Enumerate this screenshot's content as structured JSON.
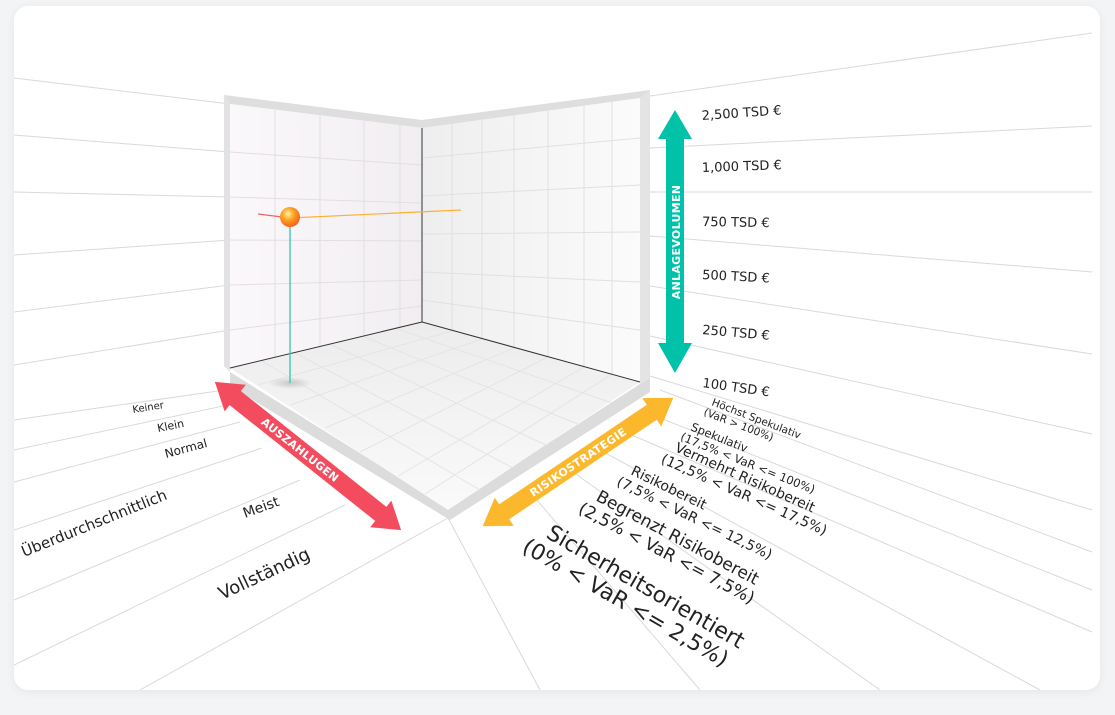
{
  "volume_axis": {
    "title": "ANLAGEVOLUMEN",
    "color": "#00c2a8",
    "levels": [
      "2,500 TSD €",
      "1,000 TSD €",
      "750 TSD €",
      "500 TSD €",
      "250 TSD €",
      "100 TSD €"
    ]
  },
  "payout_axis": {
    "title": "AUSZAHLUGEN",
    "color": "#f44c5f",
    "levels": [
      "Keiner",
      "Klein",
      "Normal",
      "Überdurchschnittlich",
      "Meist",
      "Vollständig"
    ]
  },
  "risk_axis": {
    "title": "RISIKOSTRATEGIE",
    "color": "#fbb82c",
    "levels": [
      {
        "name": "Höchst Spekulativ",
        "range": "(VaR > 100%)"
      },
      {
        "name": "Spekulativ",
        "range": "(17,5% < VaR <= 100%)"
      },
      {
        "name": "Vermehrt Risikobereit",
        "range": "(12,5% < VaR <= 17,5%)"
      },
      {
        "name": "Risikobereit",
        "range": "(7,5% < VaR <= 12,5%)"
      },
      {
        "name": "Begrenzt Risikobereit",
        "range": "(2,5% < VaR <= 7,5%)"
      },
      {
        "name": "Sicherheitsorientiert",
        "range": "(0% < VaR <= 2,5%)"
      }
    ]
  },
  "marker_color": "#ff7a1a"
}
